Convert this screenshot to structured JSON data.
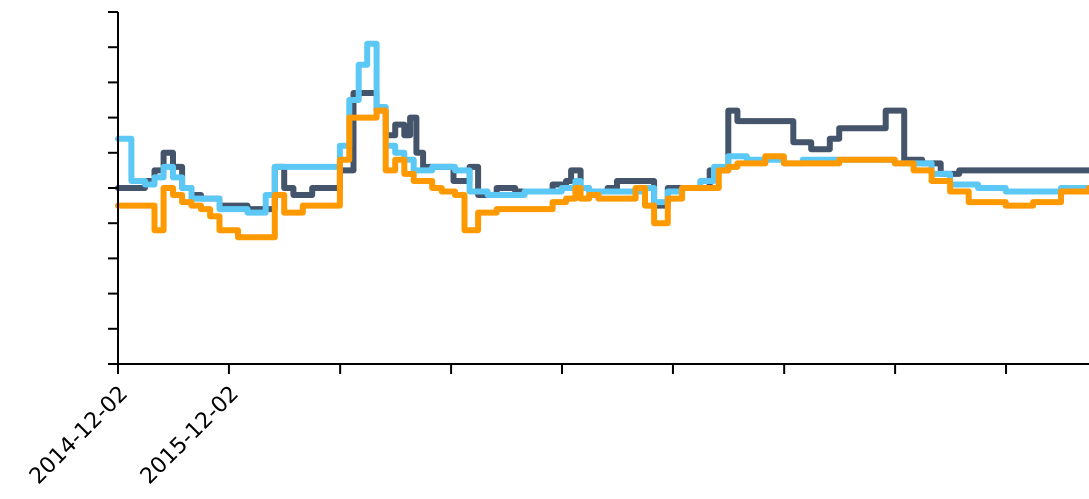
{
  "chart_data": {
    "type": "line",
    "title": "",
    "xlabel": "",
    "ylabel": "",
    "x_axis": {
      "type": "date",
      "range": [
        "2014-12-02",
        "2023-09-01"
      ],
      "ticks": [
        "2014-12-02",
        "2015-12-02",
        "2016-12-02",
        "2017-12-02",
        "2018-12-02",
        "2019-12-02",
        "2020-12-02",
        "2021-12-02",
        "2022-12-02"
      ],
      "tick_labels": [
        "2014-12-02",
        "2015-12-02",
        "",
        "",
        "",
        "",
        "",
        "",
        ""
      ]
    },
    "y_axis": {
      "range": [
        0,
        100
      ],
      "ticks": [
        0,
        10,
        20,
        30,
        40,
        50,
        60,
        70,
        80,
        90,
        100
      ],
      "tick_labels": []
    },
    "grid": false,
    "legend": "none",
    "series": [
      {
        "color": "#44546a",
        "points": [
          [
            "2014-12-02",
            50
          ],
          [
            "2015-02-01",
            50
          ],
          [
            "2015-03-01",
            52
          ],
          [
            "2015-04-01",
            55
          ],
          [
            "2015-05-01",
            60
          ],
          [
            "2015-06-01",
            56
          ],
          [
            "2015-07-01",
            50
          ],
          [
            "2015-08-01",
            48
          ],
          [
            "2015-09-01",
            47
          ],
          [
            "2015-11-01",
            45
          ],
          [
            "2016-02-01",
            44
          ],
          [
            "2016-04-01",
            44
          ],
          [
            "2016-05-01",
            56
          ],
          [
            "2016-06-01",
            50
          ],
          [
            "2016-07-01",
            48
          ],
          [
            "2016-09-01",
            50
          ],
          [
            "2016-10-01",
            50
          ],
          [
            "2016-12-01",
            55
          ],
          [
            "2017-01-15",
            77
          ],
          [
            "2017-03-01",
            77
          ],
          [
            "2017-04-01",
            72
          ],
          [
            "2017-05-01",
            65
          ],
          [
            "2017-06-01",
            68
          ],
          [
            "2017-07-01",
            65
          ],
          [
            "2017-07-20",
            70
          ],
          [
            "2017-08-10",
            60
          ],
          [
            "2017-09-01",
            56
          ],
          [
            "2017-10-01",
            56
          ],
          [
            "2017-11-15",
            56
          ],
          [
            "2017-12-10",
            52
          ],
          [
            "2018-02-01",
            56
          ],
          [
            "2018-03-01",
            48
          ],
          [
            "2018-05-01",
            50
          ],
          [
            "2018-07-01",
            49
          ],
          [
            "2018-09-01",
            49
          ],
          [
            "2018-11-01",
            51
          ],
          [
            "2018-12-15",
            52
          ],
          [
            "2019-01-01",
            55
          ],
          [
            "2019-02-01",
            50
          ],
          [
            "2019-03-01",
            49
          ],
          [
            "2019-05-01",
            50
          ],
          [
            "2019-06-01",
            52
          ],
          [
            "2019-07-01",
            52
          ],
          [
            "2019-08-01",
            52
          ],
          [
            "2019-09-01",
            52
          ],
          [
            "2019-10-01",
            45
          ],
          [
            "2019-11-15",
            50
          ],
          [
            "2020-01-01",
            50
          ],
          [
            "2020-04-01",
            55
          ],
          [
            "2020-06-01",
            72
          ],
          [
            "2020-07-01",
            69
          ],
          [
            "2020-09-01",
            69
          ],
          [
            "2020-11-01",
            69
          ],
          [
            "2021-01-01",
            63
          ],
          [
            "2021-03-01",
            61
          ],
          [
            "2021-05-01",
            64
          ],
          [
            "2021-06-01",
            67
          ],
          [
            "2021-09-01",
            67
          ],
          [
            "2021-11-01",
            72
          ],
          [
            "2022-01-01",
            58
          ],
          [
            "2022-03-01",
            57
          ],
          [
            "2022-05-01",
            54
          ],
          [
            "2022-07-01",
            55
          ],
          [
            "2022-09-01",
            55
          ],
          [
            "2022-12-01",
            55
          ],
          [
            "2023-03-01",
            55
          ],
          [
            "2023-06-01",
            55
          ],
          [
            "2023-09-01",
            55
          ]
        ]
      },
      {
        "color": "#5bc8f5",
        "points": [
          [
            "2014-12-02",
            64
          ],
          [
            "2015-01-15",
            52
          ],
          [
            "2015-03-01",
            51
          ],
          [
            "2015-04-01",
            53
          ],
          [
            "2015-05-01",
            56
          ],
          [
            "2015-06-01",
            53
          ],
          [
            "2015-07-01",
            50
          ],
          [
            "2015-08-01",
            47
          ],
          [
            "2015-09-01",
            47
          ],
          [
            "2015-11-01",
            44
          ],
          [
            "2016-02-01",
            43
          ],
          [
            "2016-03-15",
            43
          ],
          [
            "2016-04-01",
            48
          ],
          [
            "2016-05-01",
            56
          ],
          [
            "2016-07-01",
            56
          ],
          [
            "2016-09-01",
            56
          ],
          [
            "2016-11-01",
            56
          ],
          [
            "2016-12-01",
            62
          ],
          [
            "2017-01-01",
            75
          ],
          [
            "2017-02-01",
            85
          ],
          [
            "2017-03-01",
            91
          ],
          [
            "2017-04-01",
            73
          ],
          [
            "2017-05-01",
            62
          ],
          [
            "2017-06-01",
            60
          ],
          [
            "2017-07-01",
            58
          ],
          [
            "2017-08-01",
            55
          ],
          [
            "2017-09-01",
            55
          ],
          [
            "2017-10-01",
            56
          ],
          [
            "2017-11-01",
            56
          ],
          [
            "2017-12-15",
            55
          ],
          [
            "2018-02-01",
            49
          ],
          [
            "2018-04-01",
            48
          ],
          [
            "2018-06-01",
            48
          ],
          [
            "2018-08-01",
            49
          ],
          [
            "2018-10-01",
            49
          ],
          [
            "2018-12-01",
            50
          ],
          [
            "2019-01-15",
            52
          ],
          [
            "2019-02-01",
            50
          ],
          [
            "2019-03-01",
            49
          ],
          [
            "2019-05-01",
            49
          ],
          [
            "2019-07-01",
            49
          ],
          [
            "2019-09-01",
            50
          ],
          [
            "2019-10-01",
            46
          ],
          [
            "2019-11-15",
            49
          ],
          [
            "2020-01-01",
            50
          ],
          [
            "2020-03-01",
            52
          ],
          [
            "2020-04-15",
            56
          ],
          [
            "2020-06-01",
            59
          ],
          [
            "2020-08-01",
            58
          ],
          [
            "2020-10-01",
            58
          ],
          [
            "2020-12-01",
            57
          ],
          [
            "2021-02-01",
            58
          ],
          [
            "2021-04-01",
            58
          ],
          [
            "2021-06-01",
            58
          ],
          [
            "2021-08-01",
            58
          ],
          [
            "2021-10-01",
            58
          ],
          [
            "2021-12-01",
            57
          ],
          [
            "2022-02-01",
            57
          ],
          [
            "2022-04-01",
            54
          ],
          [
            "2022-06-01",
            51
          ],
          [
            "2022-09-01",
            50
          ],
          [
            "2022-12-01",
            49
          ],
          [
            "2023-03-01",
            49
          ],
          [
            "2023-06-01",
            50
          ],
          [
            "2023-09-01",
            50
          ]
        ]
      },
      {
        "color": "#ff9900",
        "points": [
          [
            "2014-12-02",
            45
          ],
          [
            "2015-03-01",
            45
          ],
          [
            "2015-04-01",
            38
          ],
          [
            "2015-05-01",
            50
          ],
          [
            "2015-06-01",
            48
          ],
          [
            "2015-07-01",
            46
          ],
          [
            "2015-08-01",
            45
          ],
          [
            "2015-09-01",
            44
          ],
          [
            "2015-10-01",
            42
          ],
          [
            "2015-11-01",
            38
          ],
          [
            "2016-01-01",
            36
          ],
          [
            "2016-04-01",
            36
          ],
          [
            "2016-05-01",
            48
          ],
          [
            "2016-06-01",
            43
          ],
          [
            "2016-08-01",
            45
          ],
          [
            "2016-10-01",
            45
          ],
          [
            "2016-12-01",
            58
          ],
          [
            "2017-01-01",
            70
          ],
          [
            "2017-03-01",
            70
          ],
          [
            "2017-04-01",
            72
          ],
          [
            "2017-05-01",
            55
          ],
          [
            "2017-06-01",
            58
          ],
          [
            "2017-07-01",
            54
          ],
          [
            "2017-08-01",
            52
          ],
          [
            "2017-09-01",
            52
          ],
          [
            "2017-10-01",
            50
          ],
          [
            "2017-11-01",
            49
          ],
          [
            "2017-12-15",
            48
          ],
          [
            "2018-01-15",
            38
          ],
          [
            "2018-03-01",
            43
          ],
          [
            "2018-05-01",
            44
          ],
          [
            "2018-07-01",
            44
          ],
          [
            "2018-09-01",
            44
          ],
          [
            "2018-11-01",
            46
          ],
          [
            "2018-12-15",
            47
          ],
          [
            "2019-01-15",
            50
          ],
          [
            "2019-02-01",
            47
          ],
          [
            "2019-03-01",
            48
          ],
          [
            "2019-04-01",
            47
          ],
          [
            "2019-06-01",
            47
          ],
          [
            "2019-08-01",
            50
          ],
          [
            "2019-09-01",
            45
          ],
          [
            "2019-10-01",
            40
          ],
          [
            "2019-11-15",
            47
          ],
          [
            "2020-01-01",
            50
          ],
          [
            "2020-03-01",
            50
          ],
          [
            "2020-05-01",
            55
          ],
          [
            "2020-06-01",
            56
          ],
          [
            "2020-07-01",
            57
          ],
          [
            "2020-09-01",
            57
          ],
          [
            "2020-10-01",
            59
          ],
          [
            "2020-12-01",
            57
          ],
          [
            "2021-02-01",
            57
          ],
          [
            "2021-04-01",
            57
          ],
          [
            "2021-06-01",
            58
          ],
          [
            "2021-08-01",
            58
          ],
          [
            "2021-10-01",
            58
          ],
          [
            "2021-12-01",
            57
          ],
          [
            "2022-02-01",
            55
          ],
          [
            "2022-04-01",
            52
          ],
          [
            "2022-06-01",
            49
          ],
          [
            "2022-08-01",
            46
          ],
          [
            "2022-10-01",
            46
          ],
          [
            "2022-12-01",
            45
          ],
          [
            "2023-03-01",
            46
          ],
          [
            "2023-06-01",
            49
          ],
          [
            "2023-09-01",
            50
          ]
        ]
      }
    ]
  }
}
